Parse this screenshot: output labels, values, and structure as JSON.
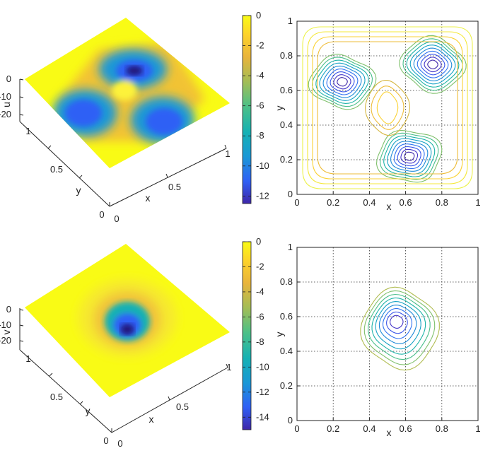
{
  "chart_data": [
    {
      "type": "surface",
      "zlabel": "u",
      "xlabel": "x",
      "ylabel": "y",
      "x_ticks": [
        "0",
        "0.5",
        "1"
      ],
      "y_ticks": [
        "0",
        "0.5",
        "1"
      ],
      "z_ticks": [
        "0",
        "-10",
        "-20"
      ],
      "zlim": [
        -20,
        0
      ],
      "minima": [
        {
          "x": 0.75,
          "y": 0.75,
          "value": -12.5
        },
        {
          "x": 0.25,
          "y": 0.65,
          "value": -12
        },
        {
          "x": 0.62,
          "y": 0.22,
          "value": -12
        }
      ],
      "peak": {
        "x": 0.5,
        "y": 0.5,
        "value": -0.5
      }
    },
    {
      "type": "colorbar",
      "ticks": [
        "0",
        "-2",
        "-4",
        "-6",
        "-8",
        "-10",
        "-12"
      ],
      "range": [
        -12.5,
        0
      ],
      "colormap": [
        "#3e26a8",
        "#2f60f5",
        "#1a98d6",
        "#15b1b3",
        "#4ec086",
        "#a4bd55",
        "#e9b43b",
        "#fdd32a",
        "#f9fb15"
      ]
    },
    {
      "type": "contour",
      "xlabel": "x",
      "ylabel": "y",
      "x_ticks": [
        "0",
        "0.2",
        "0.4",
        "0.6",
        "0.8",
        "1"
      ],
      "y_ticks": [
        "0",
        "0.2",
        "0.4",
        "0.6",
        "0.8",
        "1"
      ],
      "xlim": [
        0,
        1
      ],
      "ylim": [
        0,
        1
      ],
      "grid": true,
      "levels": 12
    },
    {
      "type": "surface",
      "zlabel": "v",
      "xlabel": "x",
      "ylabel": "y",
      "x_ticks": [
        "0",
        "0.5",
        "1"
      ],
      "y_ticks": [
        "0",
        "0.5",
        "1"
      ],
      "z_ticks": [
        "0",
        "-10",
        "-20"
      ],
      "zlim": [
        -20,
        0
      ],
      "minima": [
        {
          "x": 0.55,
          "y": 0.57,
          "value": -14.5
        }
      ]
    },
    {
      "type": "colorbar",
      "ticks": [
        "0",
        "-2",
        "-4",
        "-6",
        "-8",
        "-10",
        "-12",
        "-14"
      ],
      "range": [
        -15,
        0
      ],
      "colormap": [
        "#3e26a8",
        "#2f60f5",
        "#1a98d6",
        "#15b1b3",
        "#4ec086",
        "#a4bd55",
        "#e9b43b",
        "#fdd32a",
        "#f9fb15"
      ]
    },
    {
      "type": "contour",
      "xlabel": "x",
      "ylabel": "y",
      "x_ticks": [
        "0",
        "0.2",
        "0.4",
        "0.6",
        "0.8",
        "1"
      ],
      "y_ticks": [
        "0",
        "0.2",
        "0.4",
        "0.6",
        "0.8",
        "1"
      ],
      "xlim": [
        0,
        1
      ],
      "ylim": [
        0,
        1
      ],
      "grid": true,
      "levels": 9
    }
  ]
}
